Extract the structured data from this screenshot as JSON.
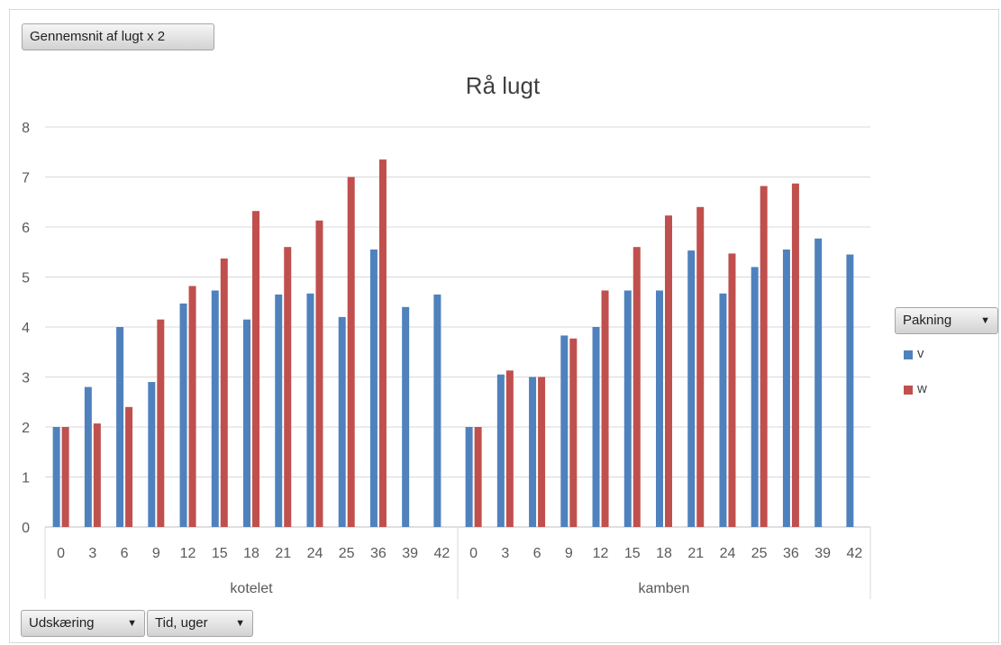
{
  "field_buttons": {
    "measure": "Gennemsnit af lugt x 2",
    "cut": "Udskæring",
    "time": "Tid, uger",
    "pack": "Pakning"
  },
  "icons": {
    "dropdown": "dropdown-arrow-icon"
  },
  "colors": {
    "v": "#4F81BD",
    "w": "#C0504D",
    "grid": "#d9d9d9",
    "text": "#595959"
  },
  "chart_data": {
    "type": "bar",
    "title": "Rå lugt",
    "ylim": [
      0,
      8
    ],
    "yticks": [
      0,
      1,
      2,
      3,
      4,
      5,
      6,
      7,
      8
    ],
    "grid": true,
    "legend_position": "right",
    "groups": [
      {
        "name": "kotelet",
        "categories": [
          "0",
          "3",
          "6",
          "9",
          "12",
          "15",
          "18",
          "21",
          "24",
          "25",
          "36",
          "39",
          "42"
        ]
      },
      {
        "name": "kamben",
        "categories": [
          "0",
          "3",
          "6",
          "9",
          "12",
          "15",
          "18",
          "21",
          "24",
          "25",
          "36",
          "39",
          "42"
        ]
      }
    ],
    "series": [
      {
        "name": "v",
        "values": [
          2.0,
          2.8,
          4.0,
          2.9,
          4.47,
          4.73,
          4.15,
          4.65,
          4.67,
          4.2,
          5.55,
          4.4,
          4.65,
          2.0,
          3.05,
          3.0,
          3.83,
          4.0,
          4.73,
          4.73,
          5.53,
          4.67,
          5.2,
          5.55,
          5.77,
          5.45
        ]
      },
      {
        "name": "w",
        "values": [
          2.0,
          2.07,
          2.4,
          4.15,
          4.82,
          5.37,
          6.32,
          5.6,
          6.13,
          7.0,
          7.35,
          null,
          null,
          2.0,
          3.13,
          3.0,
          3.77,
          4.73,
          5.6,
          6.23,
          6.4,
          5.47,
          6.82,
          6.87,
          null,
          null
        ]
      }
    ]
  }
}
